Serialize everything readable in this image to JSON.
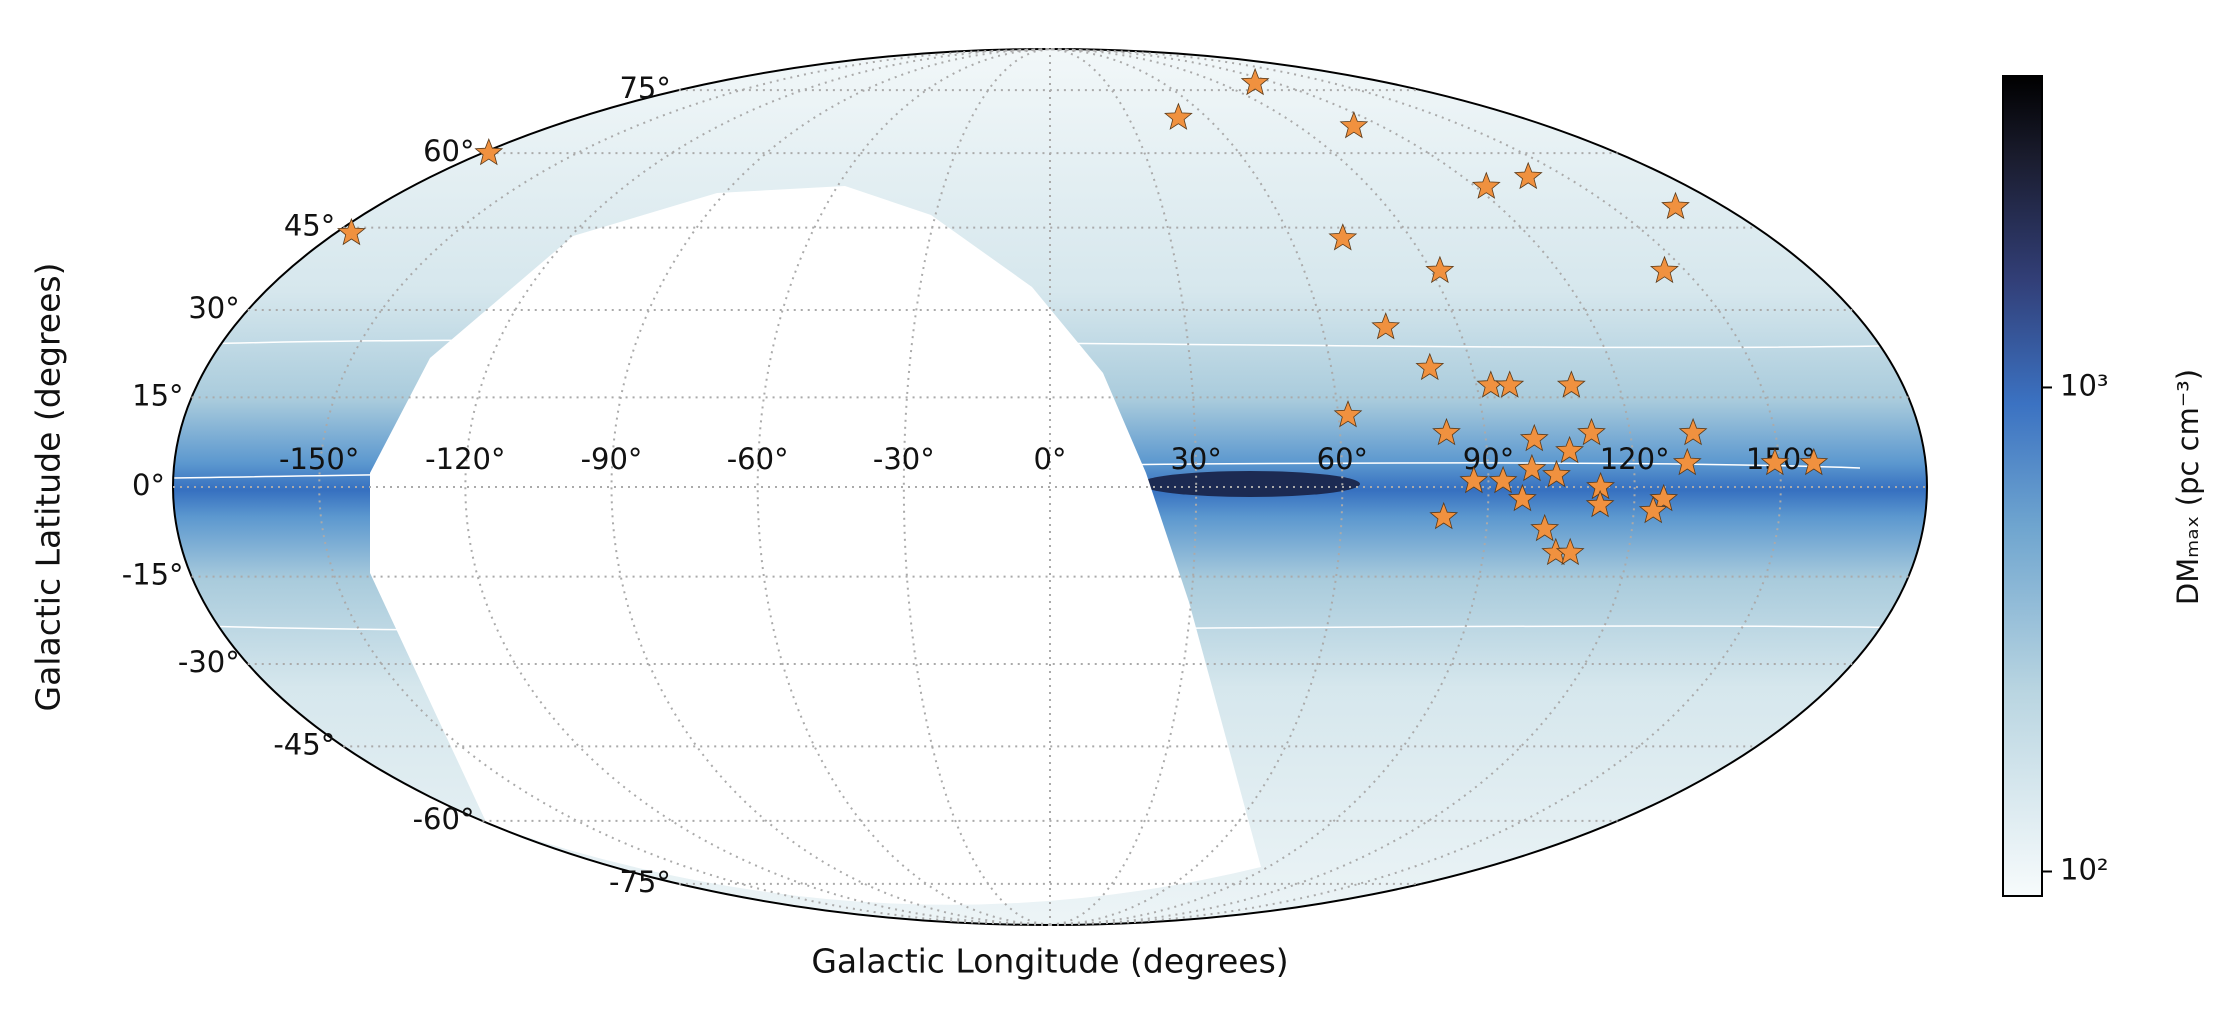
{
  "chart_data": {
    "type": "scatter",
    "projection": "mollweide",
    "xlabel": "Galactic Longitude (degrees)",
    "ylabel": "Galactic Latitude (degrees)",
    "x": [
      109,
      49,
      110,
      -178,
      -176,
      123,
      139,
      167,
      73,
      92,
      145,
      74,
      81,
      93,
      97,
      110,
      62,
      82,
      100,
      112,
      133,
      107,
      131,
      99,
      104,
      87,
      93,
      113,
      97,
      126,
      113,
      124,
      81,
      102,
      105,
      108,
      149,
      157
    ],
    "values": [
      77,
      68,
      66,
      60,
      44,
      53,
      55,
      49,
      43,
      37,
      37,
      27,
      20,
      17,
      17,
      17,
      12,
      9,
      8,
      9,
      9,
      6,
      4,
      3,
      2,
      1,
      1,
      0,
      -2,
      -2,
      -3,
      -4,
      -5,
      -7,
      -11,
      -11,
      4,
      4
    ],
    "color": "#f0913f",
    "xlim": [
      -180,
      180
    ],
    "ylim": [
      -90,
      90
    ],
    "xticks": [
      {
        "value": -150,
        "label": "-150°"
      },
      {
        "value": -120,
        "label": "-120°"
      },
      {
        "value": -90,
        "label": "-90°"
      },
      {
        "value": -60,
        "label": "-60°"
      },
      {
        "value": -30,
        "label": "-30°"
      },
      {
        "value": 0,
        "label": "0°"
      },
      {
        "value": 30,
        "label": "30°"
      },
      {
        "value": 60,
        "label": "60°"
      },
      {
        "value": 90,
        "label": "90°"
      },
      {
        "value": 120,
        "label": "120°"
      },
      {
        "value": 150,
        "label": "150°"
      }
    ],
    "yticks": [
      {
        "value": -75,
        "label": "-75°"
      },
      {
        "value": -60,
        "label": "-60°"
      },
      {
        "value": -45,
        "label": "-45°"
      },
      {
        "value": -30,
        "label": "-30°"
      },
      {
        "value": -15,
        "label": "-15°"
      },
      {
        "value": 0,
        "label": "0°"
      },
      {
        "value": 15,
        "label": "15°"
      },
      {
        "value": 30,
        "label": "30°"
      },
      {
        "value": 45,
        "label": "45°"
      },
      {
        "value": 60,
        "label": "60°"
      },
      {
        "value": 75,
        "label": "75°"
      }
    ],
    "grid": true,
    "colorbar": {
      "label": "DMₘₐₓ (pc cm⁻³)",
      "scale": "log",
      "lim": [
        89,
        4400
      ],
      "ticks": [
        {
          "value": 100,
          "label": "10²"
        },
        {
          "value": 1000,
          "label": "10³"
        }
      ]
    }
  }
}
